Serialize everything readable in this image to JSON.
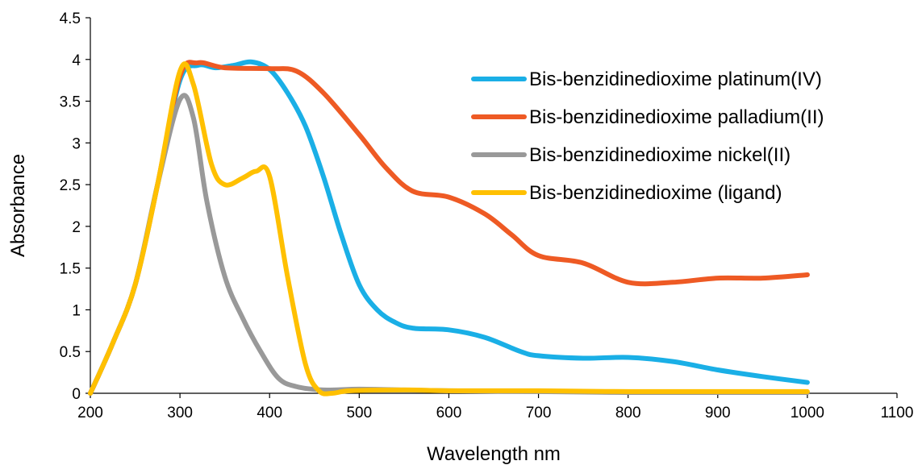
{
  "chart_data": {
    "type": "line",
    "title": "",
    "xlabel": "Wavelength nm",
    "ylabel": "Absorbance",
    "xlim": [
      200,
      1100
    ],
    "ylim": [
      0,
      4.5
    ],
    "x_ticks": [
      "200",
      "300",
      "400",
      "500",
      "600",
      "700",
      "800",
      "900",
      "1000",
      "1100"
    ],
    "y_ticks": [
      "0",
      "0.5",
      "1",
      "1.5",
      "2",
      "2.5",
      "3",
      "3.5",
      "4",
      "4.5"
    ],
    "grid": false,
    "legend_position": "top-right",
    "series": [
      {
        "name": "Bis-benzidinedioxime platinum(IV)",
        "color": "#1AAFE6",
        "points": [
          [
            200,
            0
          ],
          [
            225,
            0.6
          ],
          [
            250,
            1.3
          ],
          [
            275,
            2.5
          ],
          [
            300,
            3.75
          ],
          [
            320,
            3.93
          ],
          [
            340,
            3.9
          ],
          [
            360,
            3.93
          ],
          [
            380,
            3.97
          ],
          [
            400,
            3.88
          ],
          [
            420,
            3.6
          ],
          [
            440,
            3.2
          ],
          [
            460,
            2.6
          ],
          [
            480,
            1.9
          ],
          [
            500,
            1.3
          ],
          [
            520,
            1.0
          ],
          [
            540,
            0.85
          ],
          [
            560,
            0.78
          ],
          [
            600,
            0.76
          ],
          [
            640,
            0.67
          ],
          [
            680,
            0.5
          ],
          [
            700,
            0.45
          ],
          [
            750,
            0.42
          ],
          [
            800,
            0.43
          ],
          [
            850,
            0.38
          ],
          [
            900,
            0.28
          ],
          [
            950,
            0.2
          ],
          [
            1000,
            0.13
          ]
        ]
      },
      {
        "name": "Bis-benzidinedioxime palladium(II)",
        "color": "#EE5A24",
        "points": [
          [
            200,
            0
          ],
          [
            225,
            0.6
          ],
          [
            250,
            1.3
          ],
          [
            275,
            2.5
          ],
          [
            300,
            3.8
          ],
          [
            320,
            3.96
          ],
          [
            350,
            3.9
          ],
          [
            400,
            3.89
          ],
          [
            430,
            3.86
          ],
          [
            460,
            3.6
          ],
          [
            500,
            3.1
          ],
          [
            530,
            2.7
          ],
          [
            560,
            2.42
          ],
          [
            600,
            2.35
          ],
          [
            640,
            2.15
          ],
          [
            670,
            1.9
          ],
          [
            700,
            1.65
          ],
          [
            750,
            1.56
          ],
          [
            800,
            1.33
          ],
          [
            850,
            1.33
          ],
          [
            900,
            1.38
          ],
          [
            950,
            1.38
          ],
          [
            1000,
            1.42
          ]
        ]
      },
      {
        "name": "Bis-benzidinedioxime nickel(II)",
        "color": "#999999",
        "points": [
          [
            200,
            0
          ],
          [
            225,
            0.6
          ],
          [
            250,
            1.3
          ],
          [
            275,
            2.5
          ],
          [
            300,
            3.52
          ],
          [
            315,
            3.3
          ],
          [
            330,
            2.3
          ],
          [
            350,
            1.4
          ],
          [
            370,
            0.9
          ],
          [
            390,
            0.5
          ],
          [
            410,
            0.18
          ],
          [
            430,
            0.08
          ],
          [
            460,
            0.04
          ],
          [
            500,
            0.05
          ],
          [
            550,
            0.04
          ],
          [
            600,
            0.03
          ],
          [
            700,
            0.02
          ],
          [
            800,
            0.01
          ],
          [
            900,
            0.01
          ],
          [
            1000,
            0.01
          ]
        ]
      },
      {
        "name": "Bis-benzidinedioxime (ligand)",
        "color": "#FFC000",
        "points": [
          [
            200,
            0
          ],
          [
            225,
            0.6
          ],
          [
            250,
            1.3
          ],
          [
            275,
            2.5
          ],
          [
            300,
            3.86
          ],
          [
            315,
            3.7
          ],
          [
            335,
            2.75
          ],
          [
            350,
            2.5
          ],
          [
            370,
            2.58
          ],
          [
            385,
            2.66
          ],
          [
            400,
            2.6
          ],
          [
            420,
            1.4
          ],
          [
            440,
            0.35
          ],
          [
            455,
            0.03
          ],
          [
            470,
            0.0
          ],
          [
            490,
            0.03
          ],
          [
            550,
            0.04
          ],
          [
            600,
            0.03
          ],
          [
            700,
            0.03
          ],
          [
            800,
            0.02
          ],
          [
            900,
            0.02
          ],
          [
            1000,
            0.02
          ]
        ]
      }
    ]
  }
}
